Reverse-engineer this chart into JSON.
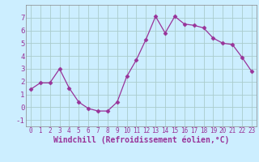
{
  "x": [
    0,
    1,
    2,
    3,
    4,
    5,
    6,
    7,
    8,
    9,
    10,
    11,
    12,
    13,
    14,
    15,
    16,
    17,
    18,
    19,
    20,
    21,
    22,
    23
  ],
  "y": [
    1.4,
    1.9,
    1.9,
    3.0,
    1.5,
    0.4,
    -0.1,
    -0.3,
    -0.3,
    0.4,
    2.4,
    3.7,
    5.3,
    7.1,
    5.8,
    7.1,
    6.5,
    6.4,
    6.2,
    5.4,
    5.0,
    4.9,
    3.9,
    2.8
  ],
  "line_color": "#993399",
  "marker": "D",
  "marker_size": 2.5,
  "bg_color": "#cceeff",
  "grid_color": "#aacccc",
  "xlabel": "Windchill (Refroidissement éolien,°C)",
  "xlabel_fontsize": 7,
  "xtick_fontsize": 5.5,
  "ytick_fontsize": 6.5,
  "xlim": [
    -0.5,
    23.5
  ],
  "ylim": [
    -1.5,
    8.0
  ],
  "yticks": [
    -1,
    0,
    1,
    2,
    3,
    4,
    5,
    6,
    7
  ],
  "xticks": [
    0,
    1,
    2,
    3,
    4,
    5,
    6,
    7,
    8,
    9,
    10,
    11,
    12,
    13,
    14,
    15,
    16,
    17,
    18,
    19,
    20,
    21,
    22,
    23
  ]
}
